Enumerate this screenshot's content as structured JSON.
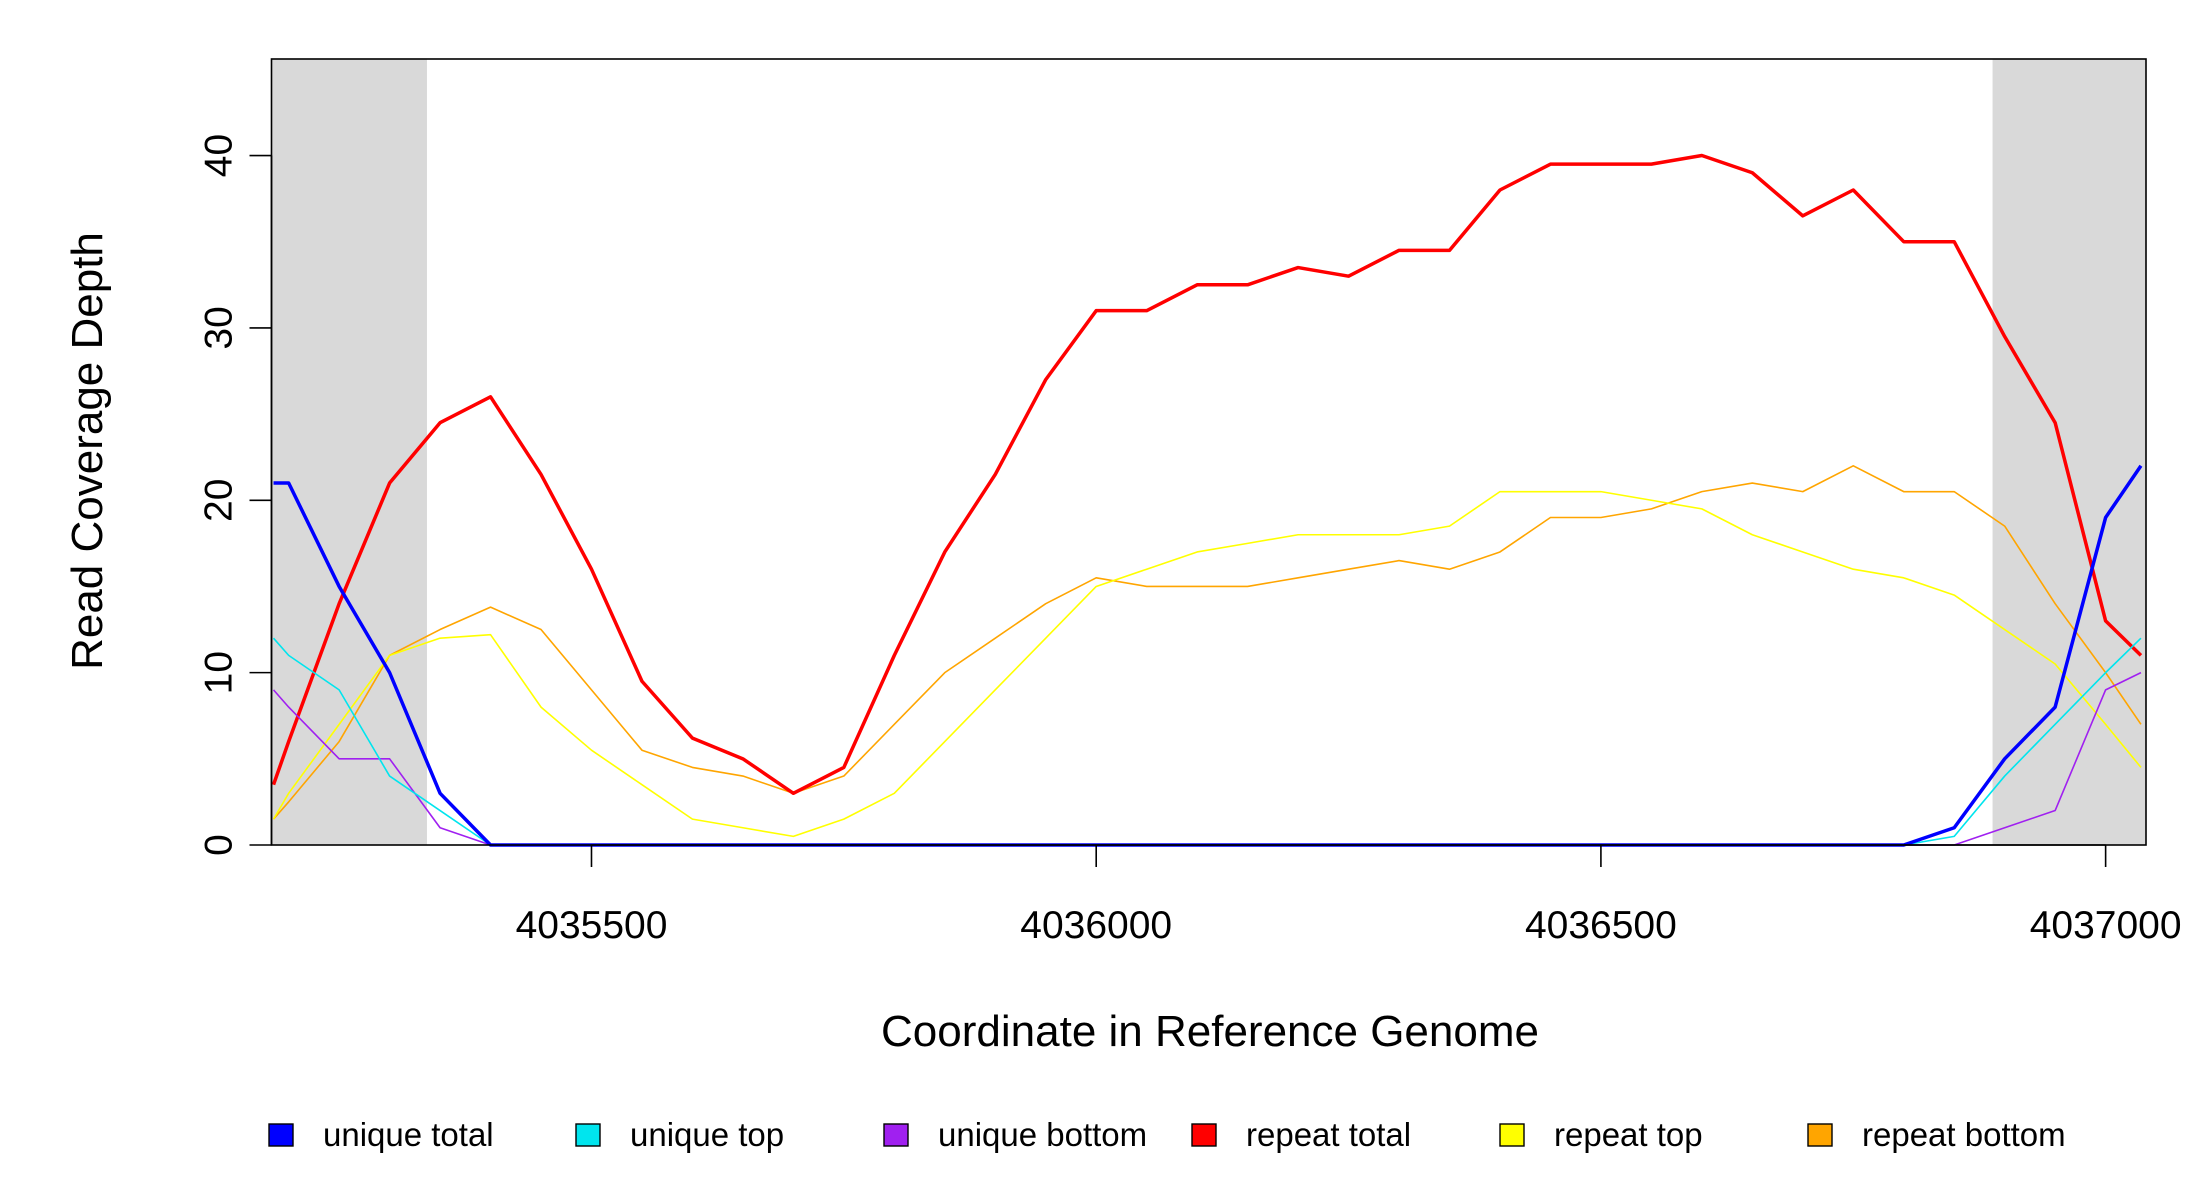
{
  "chart_data": {
    "type": "line",
    "x_label": "Coordinate in Reference Genome",
    "y_label": "Read Coverage Depth",
    "xlim": [
      4035183,
      4037040
    ],
    "ylim": [
      0,
      45.6
    ],
    "xticks": [
      4035500,
      4036000,
      4036500,
      4037000
    ],
    "yticks": [
      0,
      10,
      20,
      30,
      40
    ],
    "shaded_regions": [
      [
        4035183,
        4035337
      ],
      [
        4036888,
        4037040
      ]
    ],
    "shade_color": "#d9d9d9",
    "x": [
      4035185,
      4035200,
      4035250,
      4035300,
      4035350,
      4035400,
      4035450,
      4035500,
      4035550,
      4035600,
      4035650,
      4035700,
      4035750,
      4035800,
      4035850,
      4035900,
      4035950,
      4036000,
      4036050,
      4036100,
      4036150,
      4036200,
      4036250,
      4036300,
      4036350,
      4036400,
      4036450,
      4036500,
      4036550,
      4036600,
      4036650,
      4036700,
      4036750,
      4036800,
      4036850,
      4036900,
      4036950,
      4037000,
      4037035
    ],
    "series": [
      {
        "name": "unique total",
        "color": "#0000ff",
        "bold": true,
        "values": [
          21,
          21,
          15,
          10,
          3,
          0,
          0,
          0,
          0,
          0,
          0,
          0,
          0,
          0,
          0,
          0,
          0,
          0,
          0,
          0,
          0,
          0,
          0,
          0,
          0,
          0,
          0,
          0,
          0,
          0,
          0,
          0,
          0,
          0,
          1,
          5,
          8,
          19,
          22
        ]
      },
      {
        "name": "unique top",
        "color": "#00e5ee",
        "bold": false,
        "values": [
          12,
          11,
          9,
          4,
          2,
          0,
          0,
          0,
          0,
          0,
          0,
          0,
          0,
          0,
          0,
          0,
          0,
          0,
          0,
          0,
          0,
          0,
          0,
          0,
          0,
          0,
          0,
          0,
          0,
          0,
          0,
          0,
          0,
          0,
          0.5,
          4,
          7,
          10,
          12
        ]
      },
      {
        "name": "unique bottom",
        "color": "#a020f0",
        "bold": false,
        "values": [
          9,
          8,
          5,
          5,
          1,
          0,
          0,
          0,
          0,
          0,
          0,
          0,
          0,
          0,
          0,
          0,
          0,
          0,
          0,
          0,
          0,
          0,
          0,
          0,
          0,
          0,
          0,
          0,
          0,
          0,
          0,
          0,
          0,
          0,
          0,
          1,
          2,
          9,
          10
        ]
      },
      {
        "name": "repeat total",
        "color": "#ff0000",
        "bold": true,
        "values": [
          3.5,
          6,
          14,
          21,
          24.5,
          26,
          21.5,
          16,
          9.5,
          6.2,
          5,
          3,
          4.5,
          11,
          17,
          21.5,
          27,
          31,
          31,
          32.5,
          32.5,
          33.5,
          33,
          34.5,
          34.5,
          38,
          39.5,
          39.5,
          39.5,
          40,
          39,
          36.5,
          38,
          35,
          35,
          29.5,
          24.5,
          13,
          11
        ]
      },
      {
        "name": "repeat top",
        "color": "#ffff00",
        "bold": false,
        "values": [
          1.5,
          3,
          7,
          11,
          12,
          12.2,
          8,
          5.5,
          3.5,
          1.5,
          1,
          0.5,
          1.5,
          3,
          6,
          9,
          12,
          15,
          16,
          17,
          17.5,
          18,
          18,
          18,
          18.5,
          20.5,
          20.5,
          20.5,
          20,
          19.5,
          18,
          17,
          16,
          15.5,
          14.5,
          12.5,
          10.5,
          7,
          4.5
        ]
      },
      {
        "name": "repeat bottom",
        "color": "#ffa500",
        "bold": false,
        "values": [
          1.5,
          2.5,
          6,
          11,
          12.5,
          13.8,
          12.5,
          9,
          5.5,
          4.5,
          4,
          3,
          4,
          7,
          10,
          12,
          14,
          15.5,
          15,
          15,
          15,
          15.5,
          16,
          16.5,
          16,
          17,
          19,
          19,
          19.5,
          20.5,
          21,
          20.5,
          22,
          20.5,
          20.5,
          18.5,
          14,
          10,
          7
        ]
      }
    ]
  }
}
